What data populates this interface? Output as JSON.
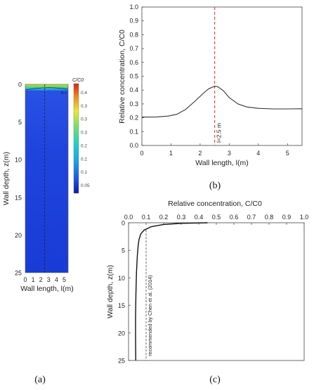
{
  "chart_data": [
    {
      "type": "heatmap",
      "panel": "(a)",
      "colorbar_label": "C/C0",
      "colorbar_ticks": [
        "0.4",
        "0.3",
        "0.3",
        "0.3",
        "0.2",
        "0.2",
        "0.1",
        "0.05"
      ],
      "contour_label": "0.1",
      "xlabel": "Wall length, l(m)",
      "ylabel": "Wall depth, z(m)",
      "xticks": [
        "0",
        "1",
        "2",
        "3",
        "4",
        "5"
      ],
      "yticks": [
        "0",
        "5",
        "10",
        "15",
        "20",
        "25"
      ],
      "xlim": [
        0,
        5.5
      ],
      "ylim": [
        0,
        25
      ],
      "dashed_line_x": 2.5
    },
    {
      "type": "line",
      "panel": "(b)",
      "xlabel": "Wall length, l(m)",
      "ylabel": "Relative concentration, C/C0",
      "xlim": [
        0,
        5.5
      ],
      "ylim": [
        0,
        1.0
      ],
      "xticks": [
        "0",
        "1",
        "2",
        "3",
        "4",
        "5"
      ],
      "yticks": [
        "0.0",
        "0.1",
        "0.2",
        "0.3",
        "0.4",
        "0.5",
        "0.6",
        "0.7",
        "0.8",
        "0.9",
        "1.0"
      ],
      "x": [
        0,
        0.5,
        0.9,
        1.2,
        1.5,
        1.8,
        2.1,
        2.3,
        2.5,
        2.6,
        2.8,
        3.0,
        3.3,
        3.6,
        4.0,
        4.5,
        5.0,
        5.5
      ],
      "y": [
        0.205,
        0.206,
        0.212,
        0.225,
        0.26,
        0.315,
        0.375,
        0.41,
        0.428,
        0.425,
        0.395,
        0.345,
        0.3,
        0.278,
        0.268,
        0.264,
        0.264,
        0.265
      ],
      "vline_x": 2.5,
      "vline_label": "l=2.5 m"
    },
    {
      "type": "line",
      "panel": "(c)",
      "xlabel": "Relative concentration, C/C0",
      "ylabel": "Wall depth, z(m)",
      "xlim": [
        0,
        1.0
      ],
      "ylim": [
        0,
        25
      ],
      "xticks": [
        "0.0",
        "0.1",
        "0.2",
        "0.3",
        "0.4",
        "0.5",
        "0.6",
        "0.7",
        "0.8",
        "0.9",
        "1.0"
      ],
      "yticks": [
        "0",
        "5",
        "10",
        "15",
        "20",
        "25"
      ],
      "x": [
        0.45,
        0.3,
        0.2,
        0.13,
        0.09,
        0.07,
        0.06,
        0.055,
        0.05,
        0.045,
        0.042,
        0.04,
        0.04,
        0.041
      ],
      "y": [
        0,
        0.1,
        0.3,
        0.7,
        1.3,
        2.0,
        3.0,
        4.0,
        6.0,
        9.0,
        13.0,
        17.0,
        21.0,
        25.0
      ],
      "vline_x": 0.1,
      "vline_label": "recommended by Chen et al. (2014)"
    }
  ]
}
